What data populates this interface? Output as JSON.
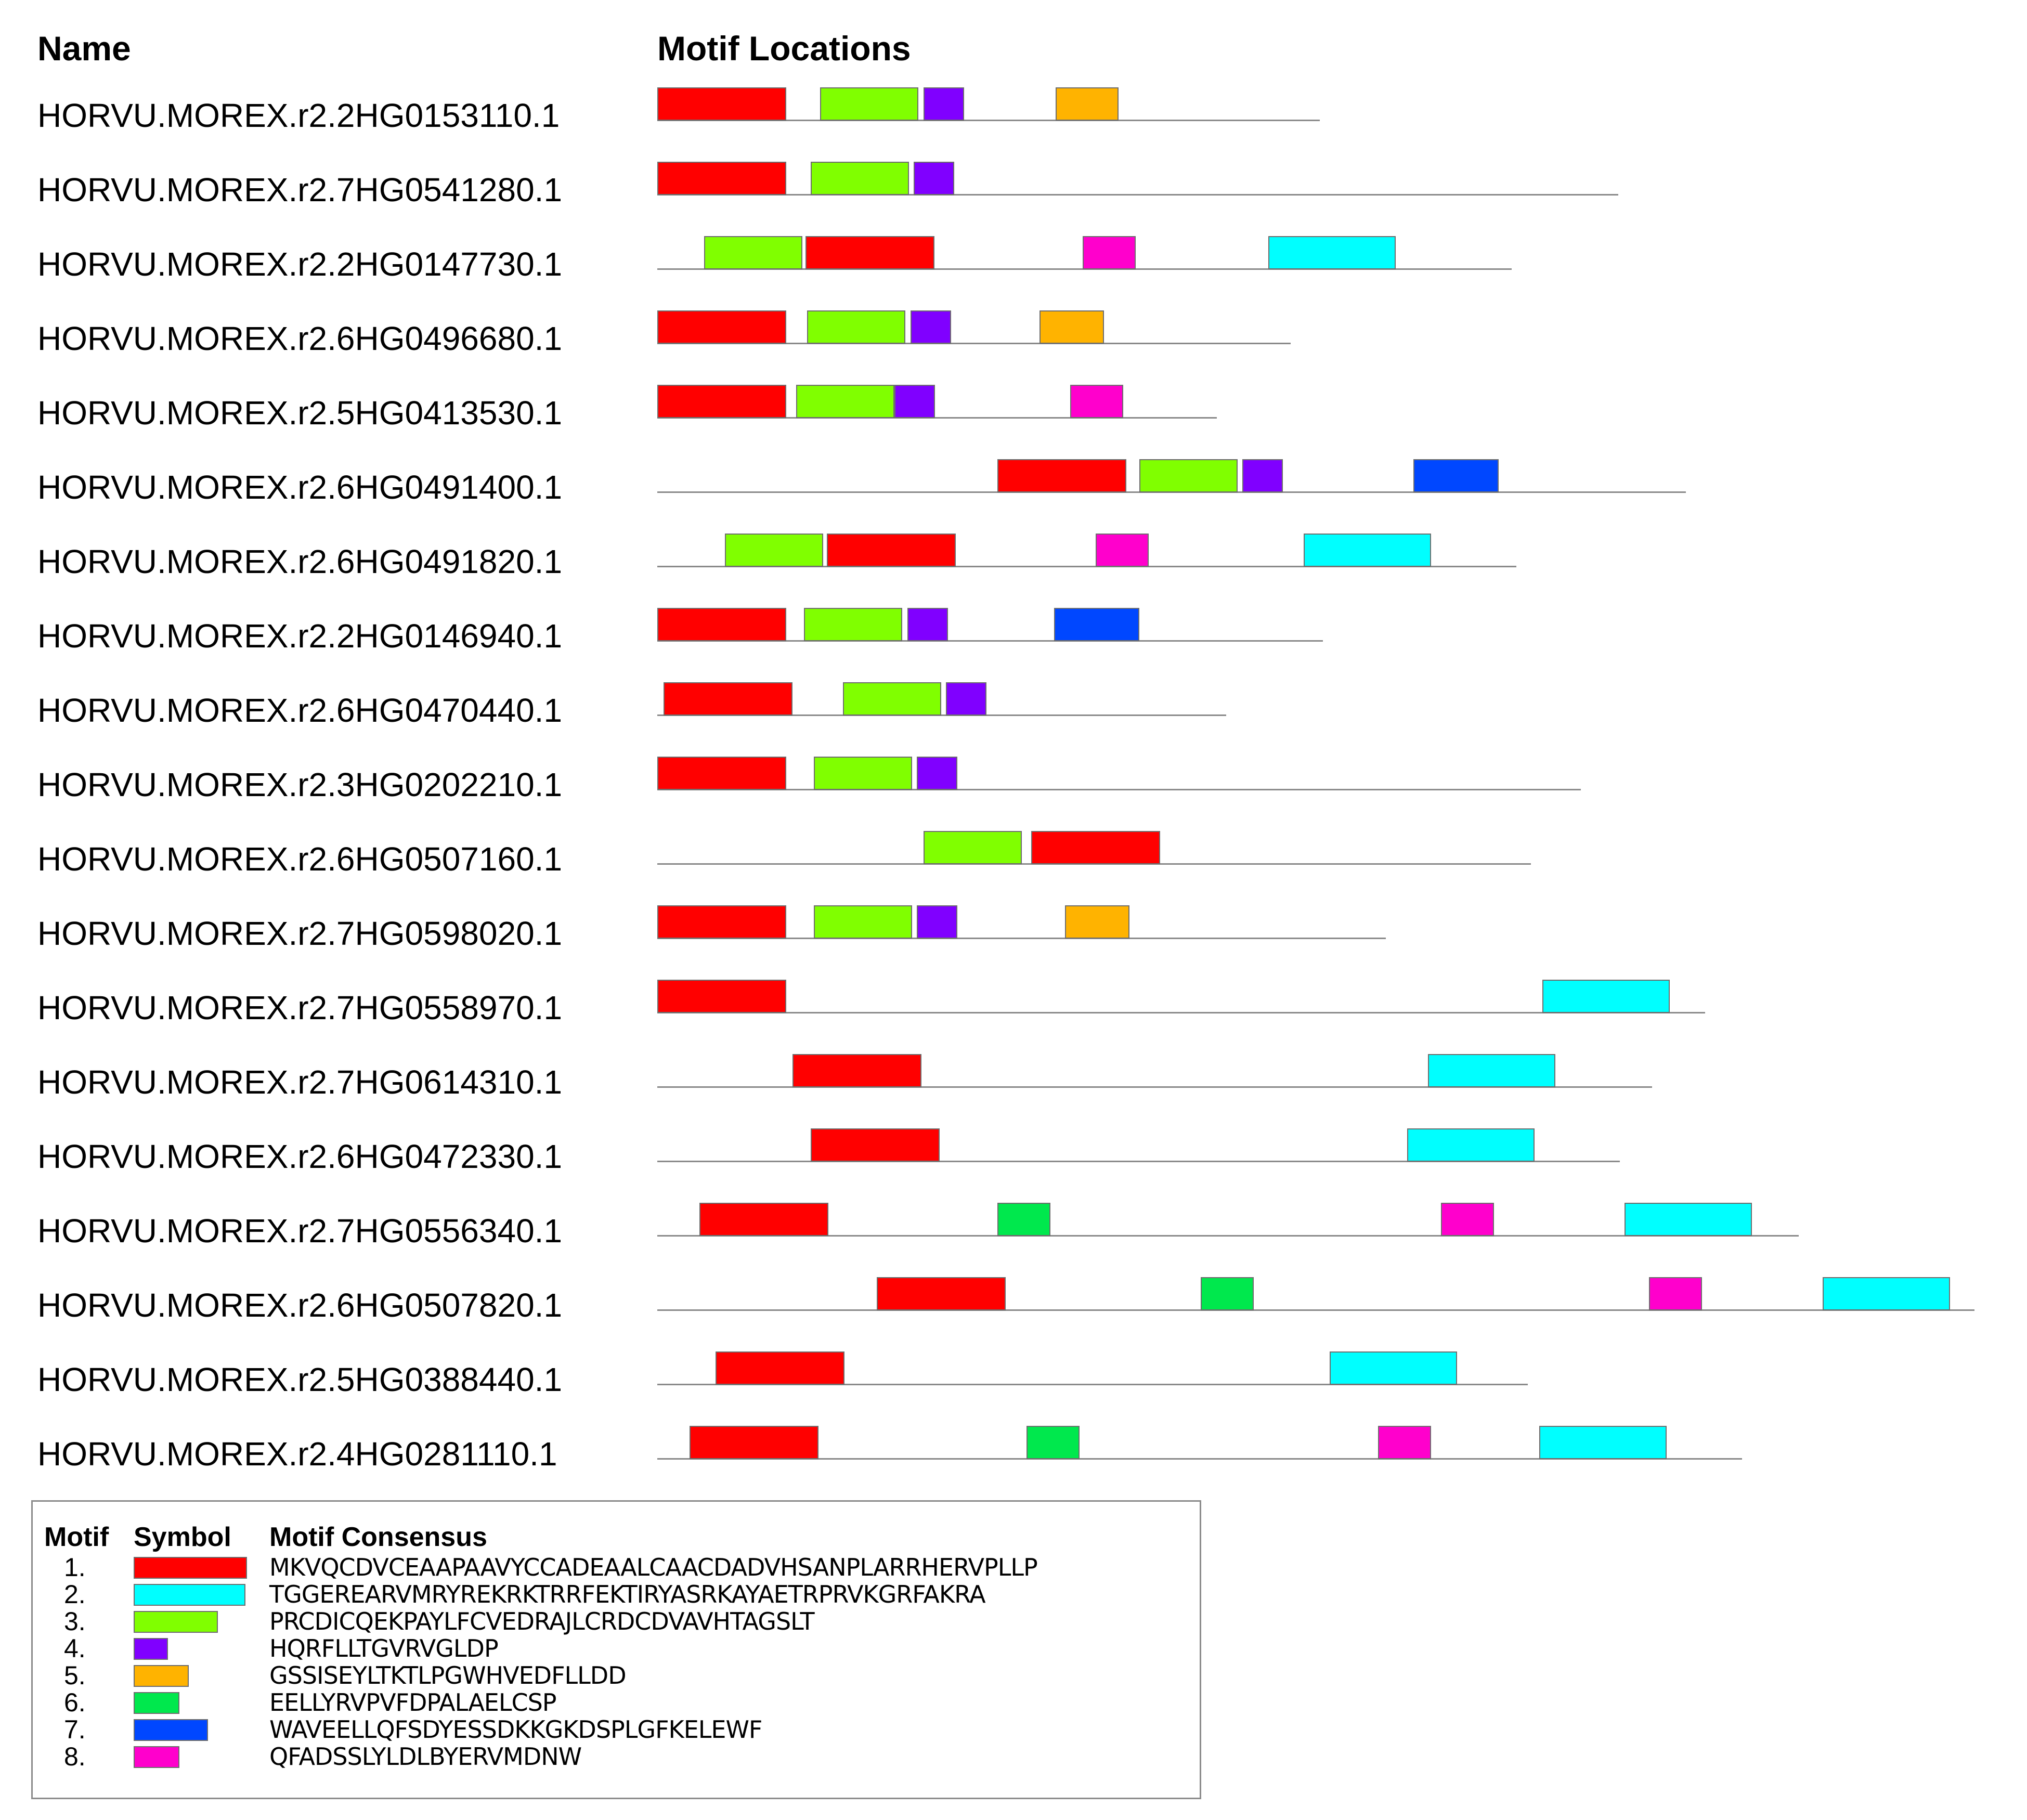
{
  "headers": {
    "name": "Name",
    "locations": "Motif Locations"
  },
  "motif_colors": {
    "1": "#ff0000",
    "2": "#00ffff",
    "3": "#80ff00",
    "4": "#8000ff",
    "5": "#ffb300",
    "6": "#00e84d",
    "7": "#0047ff",
    "8": "#ff00cc"
  },
  "sequences": [
    {
      "name": "HORVU.MOREX.r2.2HG0153110.1",
      "length": 411,
      "motifs": [
        {
          "m": 1,
          "start": 0,
          "end": 80
        },
        {
          "m": 3,
          "start": 101,
          "end": 162
        },
        {
          "m": 4,
          "start": 165,
          "end": 190
        },
        {
          "m": 5,
          "start": 247,
          "end": 286
        }
      ]
    },
    {
      "name": "HORVU.MOREX.r2.7HG0541280.1",
      "length": 596,
      "motifs": [
        {
          "m": 1,
          "start": 0,
          "end": 80
        },
        {
          "m": 3,
          "start": 95,
          "end": 156
        },
        {
          "m": 4,
          "start": 159,
          "end": 184
        }
      ]
    },
    {
      "name": "HORVU.MOREX.r2.2HG0147730.1",
      "length": 530,
      "motifs": [
        {
          "m": 3,
          "start": 29,
          "end": 90
        },
        {
          "m": 1,
          "start": 92,
          "end": 172
        },
        {
          "m": 8,
          "start": 264,
          "end": 297
        },
        {
          "m": 2,
          "start": 379,
          "end": 458
        }
      ]
    },
    {
      "name": "HORVU.MOREX.r2.6HG0496680.1",
      "length": 393,
      "motifs": [
        {
          "m": 1,
          "start": 0,
          "end": 80
        },
        {
          "m": 3,
          "start": 93,
          "end": 154
        },
        {
          "m": 4,
          "start": 157,
          "end": 182
        },
        {
          "m": 5,
          "start": 237,
          "end": 277
        }
      ]
    },
    {
      "name": "HORVU.MOREX.r2.5HG0413530.1",
      "length": 347,
      "motifs": [
        {
          "m": 1,
          "start": 0,
          "end": 80
        },
        {
          "m": 3,
          "start": 86,
          "end": 147
        },
        {
          "m": 4,
          "start": 147,
          "end": 172
        },
        {
          "m": 8,
          "start": 256,
          "end": 289
        }
      ]
    },
    {
      "name": "HORVU.MOREX.r2.6HG0491400.1",
      "length": 638,
      "motifs": [
        {
          "m": 1,
          "start": 211,
          "end": 291
        },
        {
          "m": 3,
          "start": 299,
          "end": 360
        },
        {
          "m": 4,
          "start": 363,
          "end": 388
        },
        {
          "m": 7,
          "start": 469,
          "end": 522
        }
      ]
    },
    {
      "name": "HORVU.MOREX.r2.6HG0491820.1",
      "length": 533,
      "motifs": [
        {
          "m": 3,
          "start": 42,
          "end": 103
        },
        {
          "m": 1,
          "start": 105,
          "end": 185
        },
        {
          "m": 8,
          "start": 272,
          "end": 305
        },
        {
          "m": 2,
          "start": 401,
          "end": 480
        }
      ]
    },
    {
      "name": "HORVU.MOREX.r2.2HG0146940.1",
      "length": 413,
      "motifs": [
        {
          "m": 1,
          "start": 0,
          "end": 80
        },
        {
          "m": 3,
          "start": 91,
          "end": 152
        },
        {
          "m": 4,
          "start": 155,
          "end": 180
        },
        {
          "m": 7,
          "start": 246,
          "end": 299
        }
      ]
    },
    {
      "name": "HORVU.MOREX.r2.6HG0470440.1",
      "length": 353,
      "motifs": [
        {
          "m": 1,
          "start": 4,
          "end": 84
        },
        {
          "m": 3,
          "start": 115,
          "end": 176
        },
        {
          "m": 4,
          "start": 179,
          "end": 204
        }
      ]
    },
    {
      "name": "HORVU.MOREX.r2.3HG0202210.1",
      "length": 573,
      "motifs": [
        {
          "m": 1,
          "start": 0,
          "end": 80
        },
        {
          "m": 3,
          "start": 97,
          "end": 158
        },
        {
          "m": 4,
          "start": 161,
          "end": 186
        }
      ]
    },
    {
      "name": "HORVU.MOREX.r2.6HG0507160.1",
      "length": 542,
      "motifs": [
        {
          "m": 3,
          "start": 165,
          "end": 226
        },
        {
          "m": 1,
          "start": 232,
          "end": 312
        }
      ]
    },
    {
      "name": "HORVU.MOREX.r2.7HG0598020.1",
      "length": 452,
      "motifs": [
        {
          "m": 1,
          "start": 0,
          "end": 80
        },
        {
          "m": 3,
          "start": 97,
          "end": 158
        },
        {
          "m": 4,
          "start": 161,
          "end": 186
        },
        {
          "m": 5,
          "start": 253,
          "end": 293
        }
      ]
    },
    {
      "name": "HORVU.MOREX.r2.7HG0558970.1",
      "length": 650,
      "motifs": [
        {
          "m": 1,
          "start": 0,
          "end": 80
        },
        {
          "m": 2,
          "start": 549,
          "end": 628
        }
      ]
    },
    {
      "name": "HORVU.MOREX.r2.7HG0614310.1",
      "length": 617,
      "motifs": [
        {
          "m": 1,
          "start": 84,
          "end": 164
        },
        {
          "m": 2,
          "start": 478,
          "end": 557
        }
      ]
    },
    {
      "name": "HORVU.MOREX.r2.6HG0472330.1",
      "length": 597,
      "motifs": [
        {
          "m": 1,
          "start": 95,
          "end": 175
        },
        {
          "m": 2,
          "start": 465,
          "end": 544
        }
      ]
    },
    {
      "name": "HORVU.MOREX.r2.7HG0556340.1",
      "length": 708,
      "motifs": [
        {
          "m": 1,
          "start": 26,
          "end": 106
        },
        {
          "m": 6,
          "start": 211,
          "end": 244
        },
        {
          "m": 8,
          "start": 486,
          "end": 519
        },
        {
          "m": 2,
          "start": 600,
          "end": 679
        }
      ]
    },
    {
      "name": "HORVU.MOREX.r2.6HG0507820.1",
      "length": 817,
      "motifs": [
        {
          "m": 1,
          "start": 136,
          "end": 216
        },
        {
          "m": 6,
          "start": 337,
          "end": 370
        },
        {
          "m": 8,
          "start": 615,
          "end": 648
        },
        {
          "m": 2,
          "start": 723,
          "end": 802
        }
      ]
    },
    {
      "name": "HORVU.MOREX.r2.5HG0388440.1",
      "length": 540,
      "motifs": [
        {
          "m": 1,
          "start": 36,
          "end": 116
        },
        {
          "m": 2,
          "start": 417,
          "end": 496
        }
      ]
    },
    {
      "name": "HORVU.MOREX.r2.4HG0281110.1",
      "length": 673,
      "motifs": [
        {
          "m": 1,
          "start": 20,
          "end": 100
        },
        {
          "m": 6,
          "start": 229,
          "end": 262
        },
        {
          "m": 8,
          "start": 447,
          "end": 480
        },
        {
          "m": 2,
          "start": 547,
          "end": 626
        }
      ]
    }
  ],
  "legend": {
    "headers": {
      "motif": "Motif",
      "symbol": "Symbol",
      "consensus": "Motif Consensus"
    },
    "rows": [
      {
        "num": "1.",
        "motif": 1,
        "consensus": "MKVQCDVCEAAPAAVYCCADEAALCAACDADVHSANPLARRHERVPLLP"
      },
      {
        "num": "2.",
        "motif": 2,
        "consensus": "TGGEREARVMRYREKRKTRRFEKTIRYASRKAYAETRPRVKGRFAKRA"
      },
      {
        "num": "3.",
        "motif": 3,
        "consensus": "PRCDICQEKPAYLFCVEDRAJLCRDCDVAVHTAGSLT"
      },
      {
        "num": "4.",
        "motif": 4,
        "consensus": "HQRFLLTGVRVGLDP"
      },
      {
        "num": "5.",
        "motif": 5,
        "consensus": "GSSISEYLTKTLPGWHVEDFLLDD"
      },
      {
        "num": "6.",
        "motif": 6,
        "consensus": "EELLYRVPVFDPALAELCSP"
      },
      {
        "num": "7.",
        "motif": 7,
        "consensus": "WAVEELLQFSDYESSDKKGKDSPLGFKELEWF"
      },
      {
        "num": "8.",
        "motif": 8,
        "consensus": "QFADSSLYLDLBYERVMDNW"
      }
    ]
  }
}
